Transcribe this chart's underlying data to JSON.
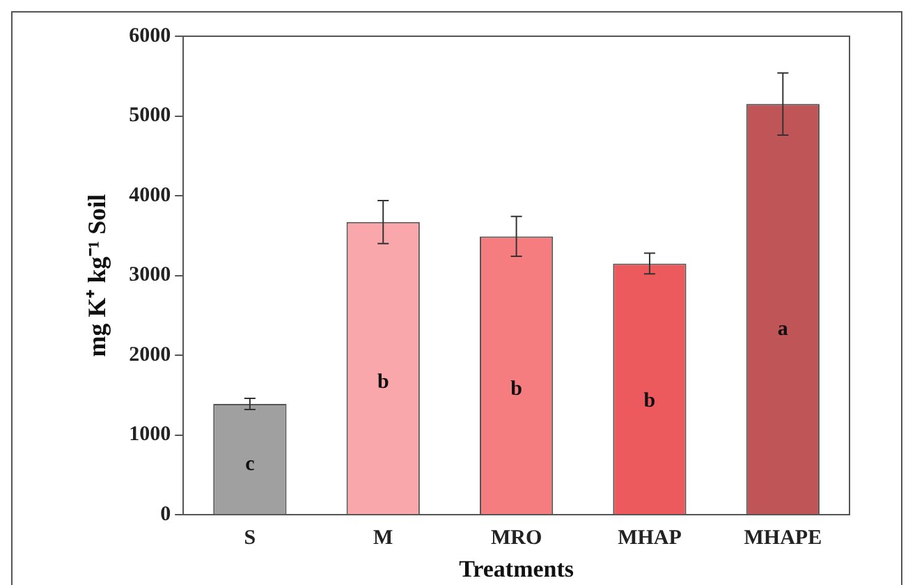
{
  "chart_data": {
    "type": "bar",
    "xlabel": "Treatments",
    "ylabel": "mg K⁺ kg⁻¹ Soil",
    "categories": [
      "S",
      "M",
      "MRO",
      "MHAP",
      "MHAPE"
    ],
    "values": [
      1390,
      3670,
      3490,
      3150,
      5150
    ],
    "errors": [
      70,
      270,
      250,
      130,
      390
    ],
    "colors": [
      "#a0a0a0",
      "#f9a7aa",
      "#f57c7f",
      "#ec5a5d",
      "#c05558"
    ],
    "ylim": [
      0,
      6000
    ],
    "yticks": [
      0,
      1000,
      2000,
      3000,
      4000,
      5000,
      6000
    ],
    "annotations": [
      "c",
      "b",
      "b",
      "b",
      "a"
    ]
  }
}
